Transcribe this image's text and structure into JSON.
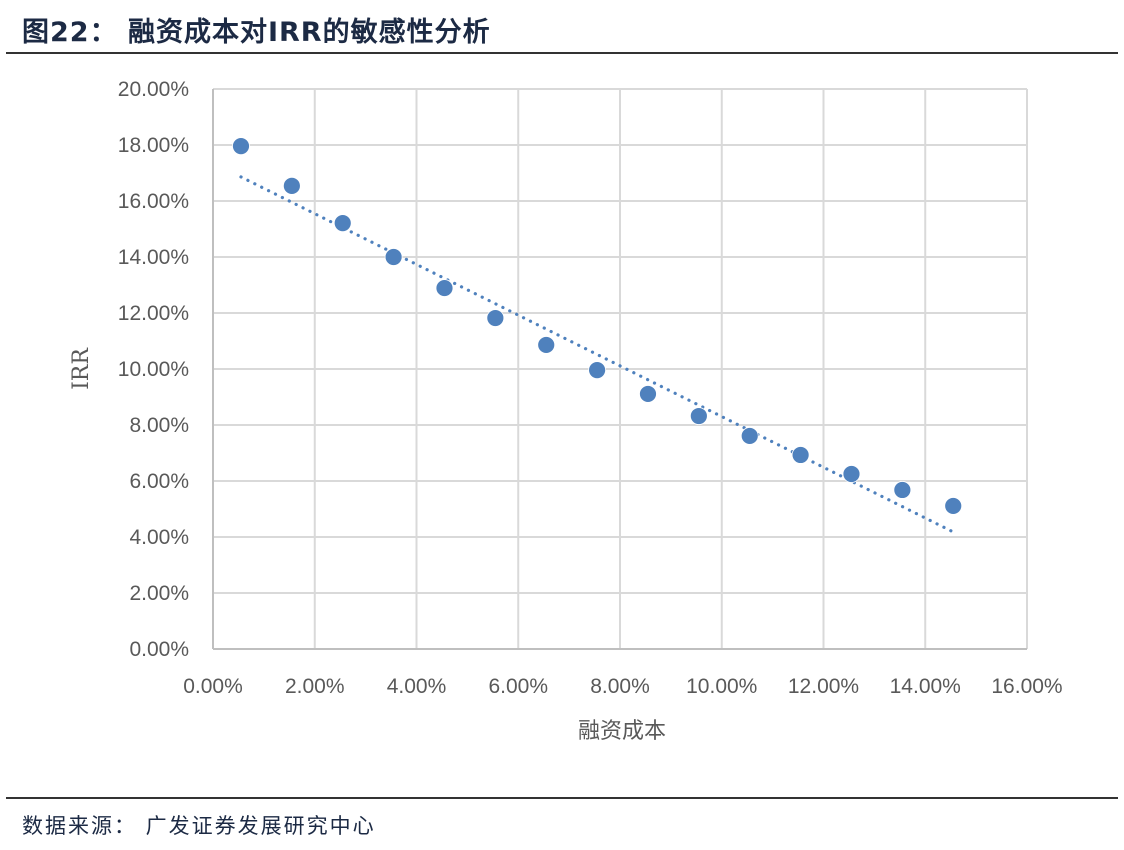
{
  "header": {
    "title": "图22： 融资成本对IRR的敏感性分析"
  },
  "footer": {
    "source": "数据来源： 广发证券发展研究中心"
  },
  "colors": {
    "marker": "#4f81bd",
    "grid": "#d9d9d9",
    "tick_text": "#595959",
    "title": "#1c2a44"
  },
  "chart_data": {
    "type": "scatter",
    "title": "融资成本对IRR的敏感性分析",
    "xlabel": "融资成本",
    "ylabel": "IRR",
    "xlim": [
      0,
      0.16
    ],
    "ylim": [
      0,
      0.2
    ],
    "x_ticks": [
      "0.00%",
      "2.00%",
      "4.00%",
      "6.00%",
      "8.00%",
      "10.00%",
      "12.00%",
      "14.00%",
      "16.00%"
    ],
    "y_ticks": [
      "0.00%",
      "2.00%",
      "4.00%",
      "6.00%",
      "8.00%",
      "10.00%",
      "12.00%",
      "14.00%",
      "16.00%",
      "18.00%",
      "20.00%"
    ],
    "grid": true,
    "legend": "none",
    "series": [
      {
        "name": "IRR",
        "x": [
          0.0055,
          0.0155,
          0.0255,
          0.0355,
          0.0455,
          0.0555,
          0.0655,
          0.0755,
          0.0855,
          0.0955,
          0.1055,
          0.1155,
          0.1255,
          0.1355,
          0.1455
        ],
        "y": [
          0.1796,
          0.1654,
          0.1521,
          0.14,
          0.1289,
          0.1182,
          0.1086,
          0.0996,
          0.0911,
          0.0832,
          0.0761,
          0.0693,
          0.0625,
          0.0568,
          0.0511
        ]
      }
    ],
    "trendline": {
      "type": "linear",
      "style": "dotted",
      "x": [
        0.0055,
        0.1455
      ],
      "y": [
        0.1686,
        0.0418
      ]
    }
  }
}
